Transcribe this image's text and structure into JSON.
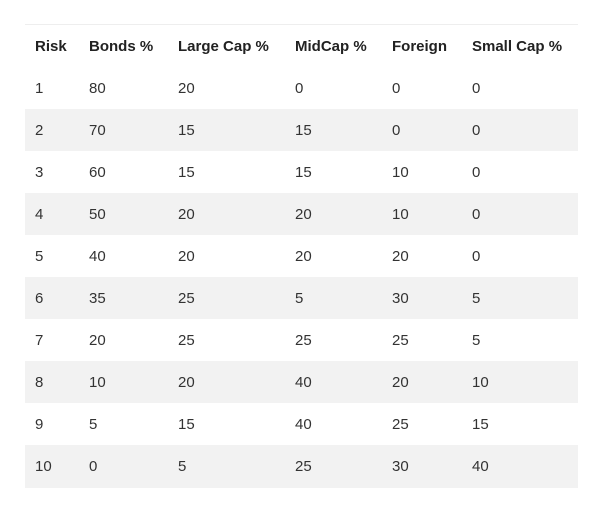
{
  "table": {
    "headers": [
      "Risk",
      "Bonds %",
      "Large Cap %",
      "MidCap %",
      "Foreign",
      "Small Cap %"
    ],
    "rows": [
      [
        "1",
        "80",
        "20",
        "0",
        "0",
        "0"
      ],
      [
        "2",
        "70",
        "15",
        "15",
        "0",
        "0"
      ],
      [
        "3",
        "60",
        "15",
        "15",
        "10",
        "0"
      ],
      [
        "4",
        "50",
        "20",
        "20",
        "10",
        "0"
      ],
      [
        "5",
        "40",
        "20",
        "20",
        "20",
        "0"
      ],
      [
        "6",
        "35",
        "25",
        "5",
        "30",
        "5"
      ],
      [
        "7",
        "20",
        "25",
        "25",
        "25",
        "5"
      ],
      [
        "8",
        "10",
        "20",
        "40",
        "20",
        "10"
      ],
      [
        "9",
        "5",
        "15",
        "40",
        "25",
        "15"
      ],
      [
        "10",
        "0",
        "5",
        "25",
        "30",
        "40"
      ]
    ]
  }
}
